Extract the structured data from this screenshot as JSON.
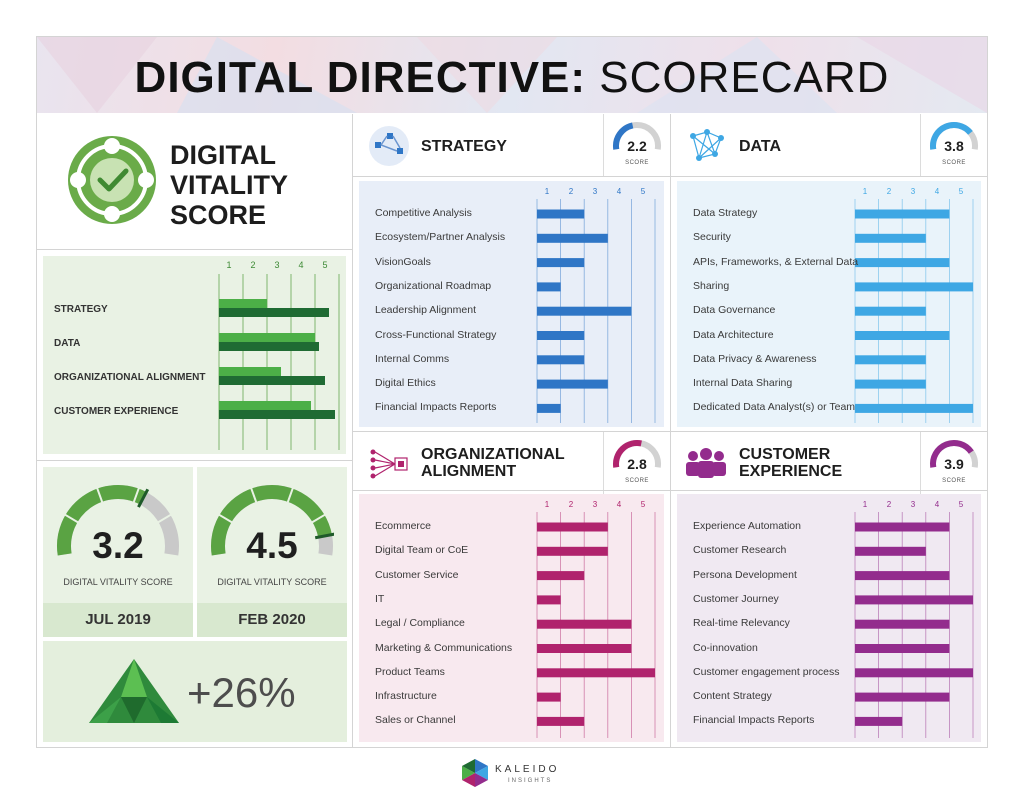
{
  "header": {
    "title_bold": "DIGITAL DIRECTIVE:",
    "title_light": "SCORECARD"
  },
  "vitality": {
    "title_lines": [
      "DIGITAL",
      "VITALITY",
      "SCORE"
    ]
  },
  "summary": {
    "ticks": [
      "1",
      "2",
      "3",
      "4",
      "5"
    ],
    "rows": [
      {
        "label": "STRATEGY"
      },
      {
        "label": "DATA"
      },
      {
        "label": "ORGANIZATIONAL ALIGNMENT"
      },
      {
        "label": "CUSTOMER EXPERIENCE"
      }
    ]
  },
  "gauges": [
    {
      "value": "3.2",
      "caption": "DIGITAL VITALITY SCORE",
      "date": "JUL 2019"
    },
    {
      "value": "4.5",
      "caption": "DIGITAL VITALITY SCORE",
      "date": "FEB 2020"
    }
  ],
  "growth": {
    "value": "+26%"
  },
  "quadrants": [
    {
      "key": "strategy",
      "title_lines": [
        "STRATEGY"
      ],
      "score": "2.2",
      "score_caption": "SCORE",
      "ticks": [
        "1",
        "2",
        "3",
        "4",
        "5"
      ]
    },
    {
      "key": "data",
      "title_lines": [
        "DATA"
      ],
      "score": "3.8",
      "score_caption": "SCORE",
      "ticks": [
        "1",
        "2",
        "3",
        "4",
        "5"
      ]
    },
    {
      "key": "org",
      "title_lines": [
        "ORGANIZATIONAL",
        "ALIGNMENT"
      ],
      "score": "2.8",
      "score_caption": "SCORE",
      "ticks": [
        "1",
        "2",
        "3",
        "4",
        "5"
      ]
    },
    {
      "key": "cx",
      "title_lines": [
        "CUSTOMER",
        "EXPERIENCE"
      ],
      "score": "3.9",
      "score_caption": "SCORE",
      "ticks": [
        "1",
        "2",
        "3",
        "4",
        "5"
      ]
    }
  ],
  "logo": {
    "name": "KALEIDO",
    "sub": "INSIGHTS"
  },
  "colors": {
    "strategy": "#2f76c6",
    "data": "#3ea7e4",
    "org": "#b0236d",
    "cx": "#932c8d",
    "summary_jul": "#4caf47",
    "summary_feb": "#1f6b33",
    "strategy_bg": "#e8eef8",
    "data_bg": "#e9f3fa",
    "org_bg": "#f8e9ef",
    "cx_bg": "#f0e9f2"
  },
  "chart_data": [
    {
      "type": "bar",
      "categories": [
        "STRATEGY",
        "DATA",
        "ORGANIZATIONAL ALIGNMENT",
        "CUSTOMER EXPERIENCE"
      ],
      "series": [
        {
          "name": "JUL 2019",
          "values": [
            2.4,
            4.8,
            3.1,
            4.6
          ]
        },
        {
          "name": "FEB 2020",
          "values": [
            5.5,
            5.0,
            5.3,
            5.8
          ]
        }
      ],
      "xlim": [
        0,
        6
      ]
    },
    {
      "type": "bar",
      "key": "strategy",
      "categories": [
        "Competitive Analysis",
        "Ecosystem/Partner Analysis",
        "VisionGoals",
        "Organizational Roadmap",
        "Leadership Alignment",
        "Cross-Functional Strategy",
        "Internal Comms",
        "Digital Ethics",
        "Financial Impacts Reports"
      ],
      "values": [
        2,
        3,
        2,
        1,
        4,
        2,
        2,
        3,
        1
      ],
      "xlim": [
        0,
        5
      ]
    },
    {
      "type": "bar",
      "key": "data",
      "categories": [
        "Data Strategy",
        "Security",
        "APIs, Frameworks, & External Data",
        "Sharing",
        "Data Governance",
        "Data Architecture",
        "Data Privacy & Awareness",
        "Internal Data Sharing",
        "Dedicated Data Analyst(s) or Team"
      ],
      "values": [
        4,
        3,
        4,
        5,
        3,
        4,
        3,
        3,
        5
      ],
      "xlim": [
        0,
        5
      ]
    },
    {
      "type": "bar",
      "key": "org",
      "categories": [
        "Ecommerce",
        "Digital Team or CoE",
        "Customer Service",
        "IT",
        "Legal / Compliance",
        "Marketing & Communications",
        "Product Teams",
        "Infrastructure",
        "Sales or Channel"
      ],
      "values": [
        3,
        3,
        2,
        1,
        4,
        4,
        5,
        1,
        2
      ],
      "xlim": [
        0,
        5
      ]
    },
    {
      "type": "bar",
      "key": "cx",
      "categories": [
        "Experience Automation",
        "Customer Research",
        "Persona Development",
        "Customer Journey",
        "Real-time Relevancy",
        "Co-innovation",
        "Customer engagement process",
        "Content Strategy",
        "Financial Impacts Reports"
      ],
      "values": [
        4,
        3,
        4,
        5,
        4,
        4,
        5,
        4,
        2
      ],
      "xlim": [
        0,
        5
      ]
    }
  ]
}
